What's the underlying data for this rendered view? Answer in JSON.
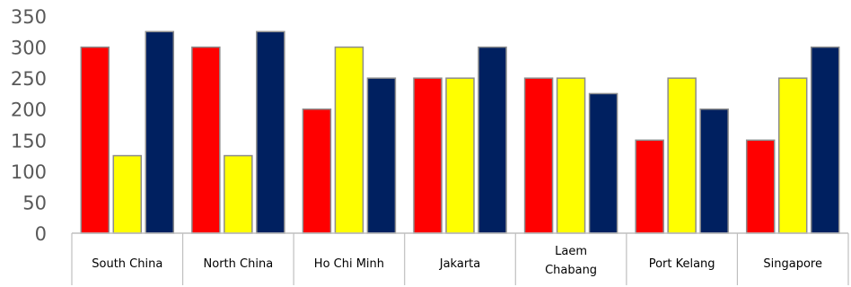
{
  "chart_data": {
    "type": "bar",
    "categories": [
      "South China",
      "North China",
      "Ho Chi Minh",
      "Jakarta",
      "Laem Chabang",
      "Port Kelang",
      "Singapore"
    ],
    "category_lines": [
      [
        "South China"
      ],
      [
        "North China"
      ],
      [
        "Ho Chi Minh"
      ],
      [
        "Jakarta"
      ],
      [
        "Laem",
        "Chabang"
      ],
      [
        "Port Kelang"
      ],
      [
        "Singapore"
      ]
    ],
    "series": [
      {
        "values": [
          300,
          300,
          200,
          250,
          250,
          150,
          150
        ],
        "color": "#ff0000"
      },
      {
        "values": [
          125,
          125,
          300,
          250,
          250,
          250,
          250
        ],
        "color": "#ffff00"
      },
      {
        "values": [
          325,
          325,
          250,
          300,
          225,
          200,
          300
        ],
        "color": "#002060"
      }
    ],
    "yticks": [
      0,
      50,
      100,
      150,
      200,
      250,
      300,
      350
    ],
    "ylim": [
      0,
      350
    ],
    "grid": false,
    "legend": "none",
    "colors": {
      "bar_border": "#8c8c8c",
      "axis": "#bfbfbf",
      "ytick_text": "#595959",
      "xtick_text": "#000000"
    }
  }
}
